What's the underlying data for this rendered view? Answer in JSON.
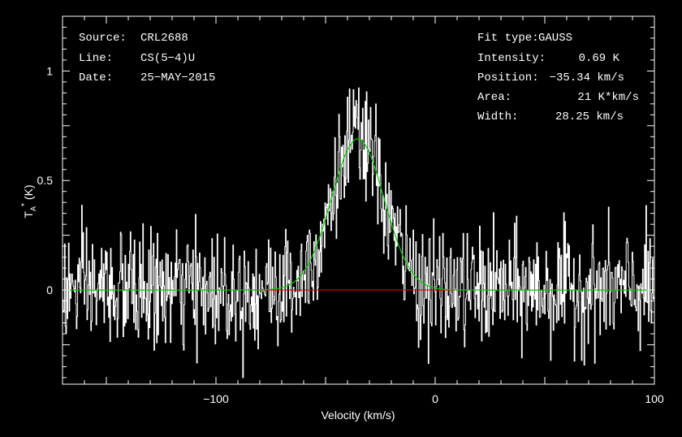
{
  "info_left": [
    {
      "label": "Source:",
      "value": "CRL2688"
    },
    {
      "label": "Line:",
      "value": "CS(5−4)U"
    },
    {
      "label": "Date:",
      "value": "25−MAY−2015"
    }
  ],
  "info_right": [
    {
      "label": "Fit type:",
      "value": "GAUSS"
    },
    {
      "label": "Intensity:",
      "value": "0.69 K"
    },
    {
      "label": "Position:",
      "value": "−35.34 km/s"
    },
    {
      "label": "Area:",
      "value": "21 K*km/s"
    },
    {
      "label": "Width:",
      "value": "28.25 km/s"
    }
  ],
  "chart_data": {
    "type": "line",
    "xlabel": "Velocity (km/s)",
    "ylabel_main": "T",
    "ylabel_sub": "A",
    "ylabel_sup": "*",
    "ylabel_unit": "(K)",
    "xlim": [
      -170,
      100
    ],
    "ylim": [
      -0.43,
      1.25
    ],
    "x_ticks": [
      {
        "value": -100,
        "label": "−100"
      },
      {
        "value": 0,
        "label": "0"
      },
      {
        "value": 100,
        "label": "100"
      }
    ],
    "y_ticks": [
      {
        "value": 0,
        "label": "0"
      },
      {
        "value": 0.5,
        "label": "0.5"
      },
      {
        "value": 1,
        "label": "1"
      }
    ],
    "spectrum": {
      "x_start": -170,
      "x_end": 100,
      "points": 900,
      "noise_rms": 0.13
    },
    "gaussian_fit": {
      "amplitude": 0.69,
      "center": -35.34,
      "fwhm": 28.25,
      "color": "#00cc00"
    },
    "fit_window": {
      "from": -85,
      "to": 15,
      "color": "#dd0000"
    },
    "colors": {
      "spectrum": "#ffffff",
      "frame": "#ffffff",
      "background": "#000000"
    }
  }
}
